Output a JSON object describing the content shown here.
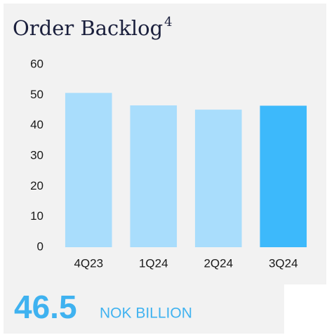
{
  "chart_data": {
    "type": "bar",
    "title": "Order Backlog",
    "title_superscript": "4",
    "categories": [
      "4Q23",
      "1Q24",
      "2Q24",
      "3Q24"
    ],
    "values": [
      50.7,
      46.6,
      45.2,
      46.5
    ],
    "colors": [
      "#a9ddfc",
      "#a9ddfc",
      "#a9ddfc",
      "#3db9fb"
    ],
    "ylim": [
      0,
      60
    ],
    "yticks": [
      0,
      10,
      20,
      30,
      40,
      50,
      60
    ],
    "grid": false,
    "kpi_value": 46.5,
    "kpi_unit": "NOK BILLION"
  }
}
